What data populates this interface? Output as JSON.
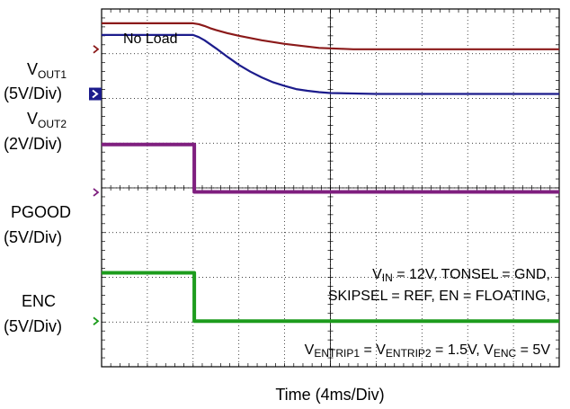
{
  "chart_data": {
    "type": "line",
    "title": "",
    "xlabel": "Time  (4ms/Div)",
    "ylabel": "",
    "x_unit": "ms",
    "x_div": 4,
    "divisions": {
      "x": 10,
      "y": 8
    },
    "xlim": [
      0,
      40
    ],
    "ylim_div": [
      0,
      8
    ],
    "grid": true,
    "annotations": {
      "load": "No Load",
      "conditions_line1": {
        "p1": "V",
        "s1": "IN",
        "p2": " = 12V, TONSEL = GND,"
      },
      "conditions_line2": "SKIPSEL = REF, EN = FLOATING,",
      "conditions_line3": {
        "p1": "V",
        "s1": "ENTRIP1",
        "p2": " = V",
        "s2": "ENTRIP2",
        "p3": " = 1.5V, V",
        "s3": "ENC",
        "p4": " = 5V"
      }
    },
    "channels": [
      {
        "label": {
          "p1": "V",
          "s1": "OUT1"
        },
        "scale": "(5V/Div)",
        "color": "#8b1a1a",
        "marker_style": "chevron",
        "ground_div": 7.1,
        "x_ms": [
          0,
          8,
          8.5,
          9,
          9.5,
          10,
          11,
          12,
          13,
          14,
          15,
          16,
          17,
          18,
          19,
          20,
          21,
          22,
          23,
          24,
          25,
          40
        ],
        "y_div": [
          7.68,
          7.68,
          7.66,
          7.62,
          7.57,
          7.53,
          7.46,
          7.4,
          7.35,
          7.3,
          7.26,
          7.22,
          7.19,
          7.16,
          7.13,
          7.12,
          7.11,
          7.1,
          7.1,
          7.1,
          7.1,
          7.1
        ]
      },
      {
        "label": {
          "p1": "V",
          "s1": "OUT2"
        },
        "scale": "(2V/Div)",
        "color": "#1c1c8c",
        "marker_style": "filled",
        "ground_div": 6.1,
        "x_ms": [
          0,
          8,
          8.5,
          9,
          10,
          11,
          12,
          13,
          14,
          15,
          16,
          17,
          18,
          19,
          20,
          22,
          24,
          26,
          40
        ],
        "y_div": [
          7.42,
          7.42,
          7.37,
          7.3,
          7.12,
          6.93,
          6.75,
          6.6,
          6.47,
          6.36,
          6.28,
          6.21,
          6.17,
          6.14,
          6.12,
          6.11,
          6.1,
          6.1,
          6.1
        ]
      },
      {
        "label": "PGOOD",
        "scale": "(5V/Div)",
        "color": "#7f1f7f",
        "marker_style": "chevron",
        "ground_div": 3.9,
        "x_ms": [
          0,
          8.1,
          8.1,
          40
        ],
        "y_div": [
          4.97,
          4.97,
          3.91,
          3.91
        ]
      },
      {
        "label": "ENC",
        "scale": "(5V/Div)",
        "color": "#1d9c1d",
        "marker_style": "chevron",
        "ground_div": 1.02,
        "x_ms": [
          0,
          8.1,
          8.1,
          40
        ],
        "y_div": [
          2.1,
          2.1,
          1.02,
          1.02
        ]
      }
    ]
  }
}
